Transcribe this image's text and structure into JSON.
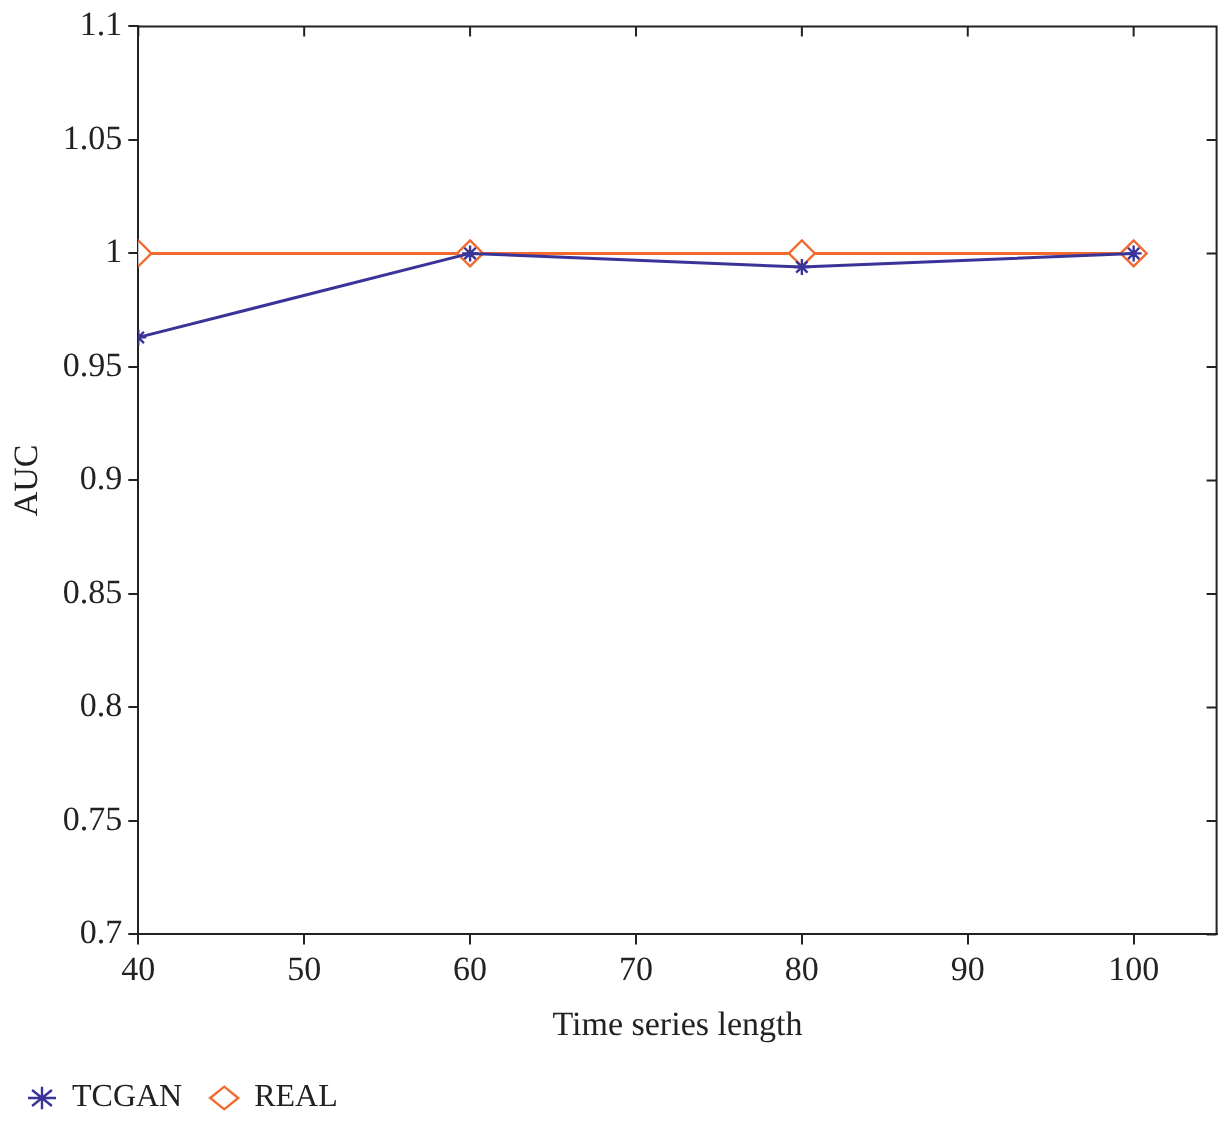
{
  "chart_data": {
    "type": "line",
    "xlabel": "Time series length",
    "ylabel": "AUC",
    "x": [
      40,
      60,
      80,
      100
    ],
    "series": [
      {
        "name": "TCGAN",
        "color": "#3b3498",
        "values": [
          0.963,
          1,
          0.994,
          1
        ],
        "marker": "cross"
      },
      {
        "name": "REAL",
        "color": "#f26a2e",
        "values": [
          1,
          1,
          1,
          1
        ],
        "marker": "diamond"
      }
    ],
    "xlim": [
      40,
      105
    ],
    "xticks": [
      40,
      50,
      60,
      70,
      80,
      90,
      100
    ],
    "ylim": [
      0.7,
      1.1
    ],
    "yticks": [
      0.7,
      0.75,
      0.8,
      0.85,
      0.9,
      0.95,
      1,
      1.05,
      1.1
    ],
    "grid": false,
    "legend": "bottom left",
    "line_style": "solid"
  }
}
